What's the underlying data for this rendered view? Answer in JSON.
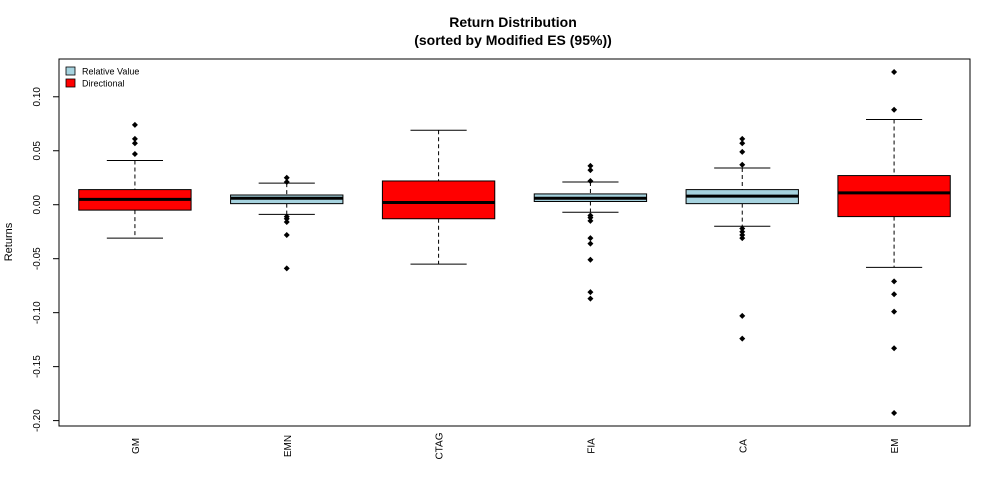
{
  "chart_data": {
    "type": "boxplot",
    "title": "Return Distribution",
    "subtitle": "(sorted by Modified ES (95%))",
    "xlabel": "",
    "ylabel": "Returns",
    "ylim": [
      -0.205,
      0.135
    ],
    "yticks": [
      0.1,
      0.05,
      0.0,
      -0.05,
      -0.1,
      -0.15,
      -0.2
    ],
    "ytick_labels": [
      "0.10",
      "0.05",
      "0.00",
      "-0.05",
      "-0.10",
      "-0.15",
      "-0.20"
    ],
    "grid": false,
    "legend_position": "top-left",
    "legend": [
      {
        "label": "Relative Value",
        "color": "#a6d3df"
      },
      {
        "label": "Directional",
        "color": "#ff0000"
      }
    ],
    "categories": [
      "GM",
      "EMN",
      "CTAG",
      "FIA",
      "CA",
      "EM"
    ],
    "boxes": [
      {
        "name": "GM",
        "group": "Directional",
        "whisker_low": -0.031,
        "q1": -0.005,
        "median": 0.005,
        "q3": 0.014,
        "whisker_high": 0.041,
        "outliers": [
          0.047,
          0.057,
          0.061,
          0.074
        ]
      },
      {
        "name": "EMN",
        "group": "Relative Value",
        "whisker_low": -0.009,
        "q1": 0.001,
        "median": 0.006,
        "q3": 0.009,
        "whisker_high": 0.02,
        "outliers": [
          0.021,
          0.025,
          -0.011,
          -0.013,
          -0.016,
          -0.028,
          -0.059
        ]
      },
      {
        "name": "CTAG",
        "group": "Directional",
        "whisker_low": -0.055,
        "q1": -0.013,
        "median": 0.002,
        "q3": 0.022,
        "whisker_high": 0.069,
        "outliers": []
      },
      {
        "name": "FIA",
        "group": "Relative Value",
        "whisker_low": -0.007,
        "q1": 0.003,
        "median": 0.006,
        "q3": 0.01,
        "whisker_high": 0.021,
        "outliers": [
          0.022,
          0.032,
          0.036,
          -0.01,
          -0.012,
          -0.015,
          -0.031,
          -0.036,
          -0.051,
          -0.081,
          -0.087
        ]
      },
      {
        "name": "CA",
        "group": "Relative Value",
        "whisker_low": -0.02,
        "q1": 0.001,
        "median": 0.008,
        "q3": 0.014,
        "whisker_high": 0.034,
        "outliers": [
          0.037,
          0.049,
          0.057,
          0.061,
          -0.022,
          -0.025,
          -0.028,
          -0.031,
          -0.103,
          -0.124
        ]
      },
      {
        "name": "EM",
        "group": "Directional",
        "whisker_low": -0.058,
        "q1": -0.011,
        "median": 0.011,
        "q3": 0.027,
        "whisker_high": 0.079,
        "outliers": [
          0.088,
          0.123,
          -0.071,
          -0.083,
          -0.099,
          -0.133,
          -0.193
        ]
      }
    ]
  }
}
